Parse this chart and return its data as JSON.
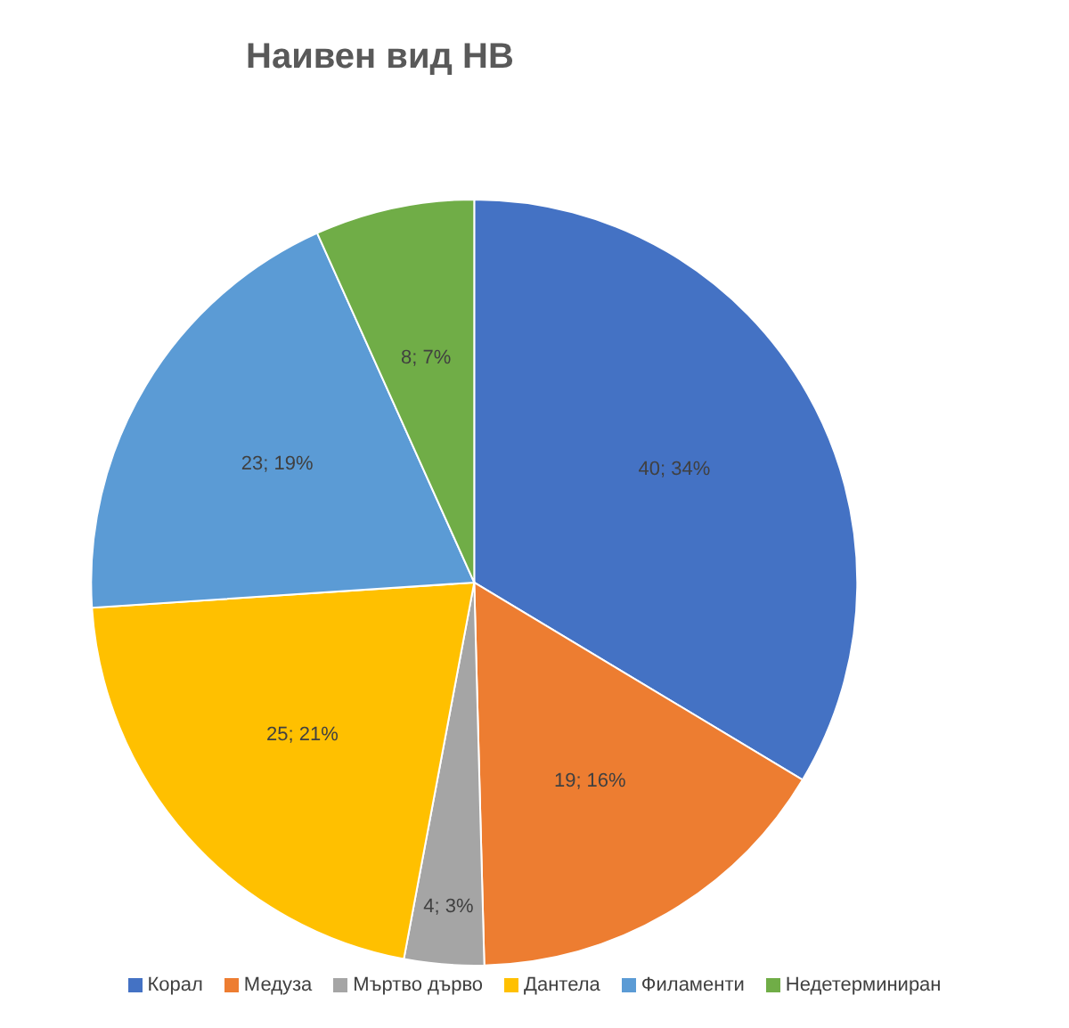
{
  "chart_data": {
    "type": "pie",
    "title": "Наивен вид НВ",
    "categories": [
      "Корал",
      "Медуза",
      "Мъртво дърво",
      "Дантела",
      "Филаменти",
      "Недетерминиран"
    ],
    "values": [
      40,
      19,
      4,
      25,
      23,
      8
    ],
    "colors": [
      "#4472c4",
      "#ed7d31",
      "#a5a5a5",
      "#ffc000",
      "#5b9bd5",
      "#70ad47"
    ],
    "value_labels": [
      "40; 34%",
      "19; 16%",
      "4; 3%",
      "25; 21%",
      "23; 19%",
      "8; 7%"
    ],
    "legend": "bottom"
  }
}
